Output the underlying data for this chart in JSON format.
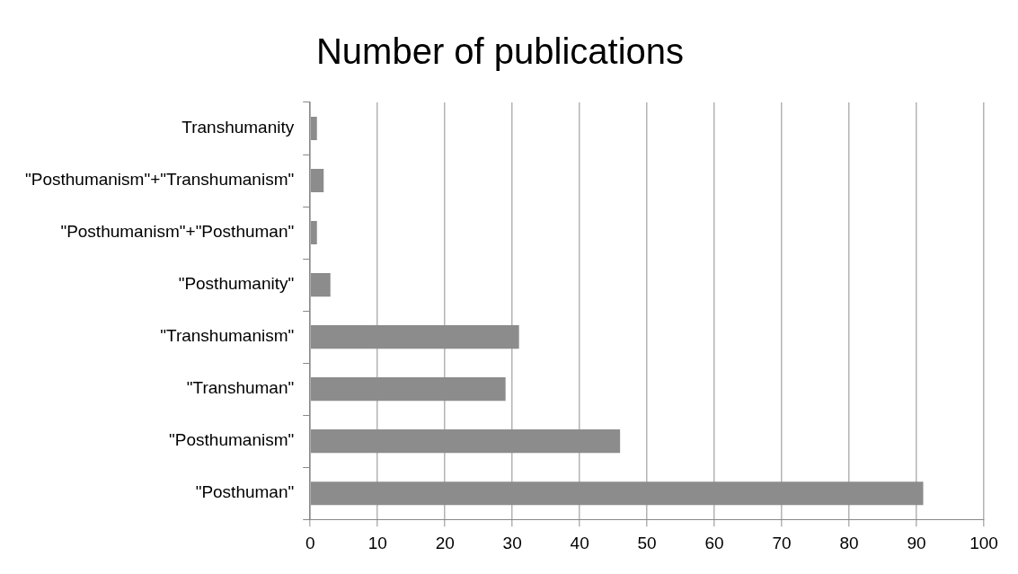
{
  "chart_data": {
    "type": "bar",
    "orientation": "horizontal",
    "title": "Number of publications",
    "categories": [
      "Transhumanity",
      "\"Posthumanism\"+\"Transhumanism\"",
      "\"Posthumanism\"+\"Posthuman\"",
      "\"Posthumanity\"",
      "\"Transhumanism\"",
      "\"Transhuman\"",
      "\"Posthumanism\"",
      "\"Posthuman\""
    ],
    "values": [
      1,
      2,
      1,
      3,
      31,
      29,
      46,
      91
    ],
    "color": "#8c8c8c",
    "xlim": [
      0,
      100
    ],
    "xticks": [
      0,
      10,
      20,
      30,
      40,
      50,
      60,
      70,
      80,
      90,
      100
    ],
    "grid": "x",
    "legend": false
  }
}
